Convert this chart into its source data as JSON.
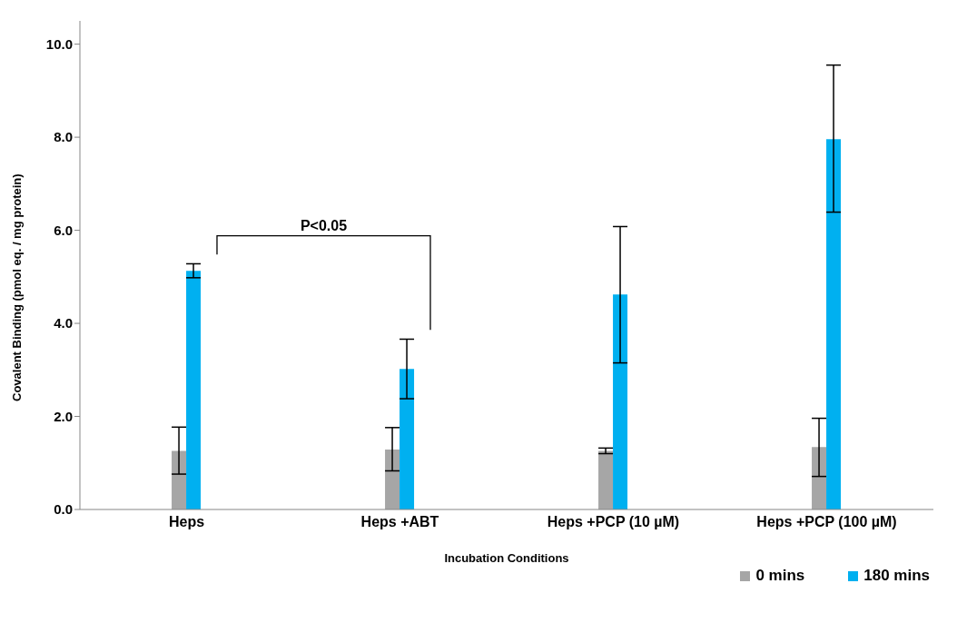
{
  "chart_data": {
    "type": "bar",
    "xlabel": "Incubation Conditions",
    "ylabel": "Covalent Binding (pmol eq. / mg protein)",
    "categories": [
      "Heps",
      "Heps +ABT",
      "Heps +PCP (10 µM)",
      "Heps +PCP (100 µM)"
    ],
    "series": [
      {
        "name": "0 mins",
        "color": "#a6a6a6",
        "values": [
          1.26,
          1.29,
          1.26,
          1.34
        ],
        "errors": [
          [
            0.76,
            1.77
          ],
          [
            0.83,
            1.76
          ],
          [
            1.2,
            1.32
          ],
          [
            0.71,
            1.96
          ]
        ]
      },
      {
        "name": "180 mins",
        "color": "#00b0f0",
        "values": [
          5.13,
          3.02,
          4.62,
          7.96
        ],
        "errors": [
          [
            4.98,
            5.28
          ],
          [
            2.38,
            3.66
          ],
          [
            3.15,
            6.08
          ],
          [
            6.39,
            9.55
          ]
        ]
      }
    ],
    "ylim": [
      0,
      10.5
    ],
    "yticks": [
      {
        "value": 0,
        "label": "0.0"
      },
      {
        "value": 2,
        "label": "2.0"
      },
      {
        "value": 4,
        "label": "4.0"
      },
      {
        "value": 6,
        "label": "6.0"
      },
      {
        "value": 8,
        "label": "8.0"
      },
      {
        "value": 10,
        "label": "10.0"
      }
    ],
    "annotations": [
      "P<0.05"
    ],
    "grid": false,
    "legend": "bottom right"
  }
}
